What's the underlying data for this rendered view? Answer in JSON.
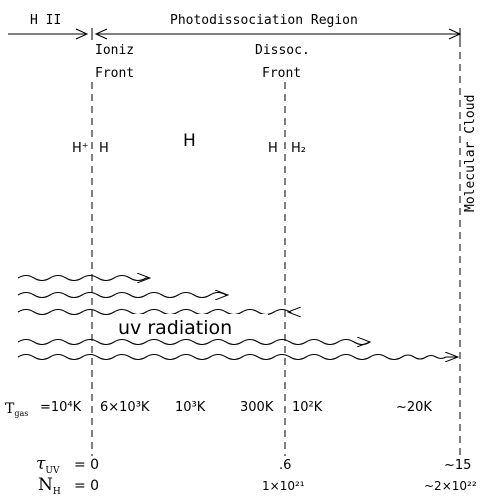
{
  "regions": {
    "hii": "H II",
    "pdr": "Photodissociation Region",
    "molecular_cloud": "Molecular Cloud"
  },
  "fronts": {
    "ioniz_line1": "Ioniz",
    "ioniz_line2": "Front",
    "dissoc_line1": "Dissoc.",
    "dissoc_line2": "Front"
  },
  "species": {
    "h_plus": "H⁺",
    "h_left": "H",
    "h_center": "H",
    "h_right": "H",
    "h2": "H₂"
  },
  "radiation_label": "uv radiation",
  "temperatures": {
    "label": "T",
    "label_sub": "gas",
    "t1": "=10⁴K",
    "t2": "6×10³K",
    "t3": "10³K",
    "t4": "300K",
    "t5": "10²K",
    "t6": "~20K"
  },
  "tau_uv": {
    "label": "τ",
    "label_sub": "UV",
    "eq_value": "= 0",
    "dissoc_value": ".6",
    "cloud_value": "~15"
  },
  "n_h": {
    "label": "N",
    "label_sub": "H",
    "eq_value": "= 0",
    "dissoc_value": "1×10²¹",
    "cloud_value": "~2×10²²"
  }
}
